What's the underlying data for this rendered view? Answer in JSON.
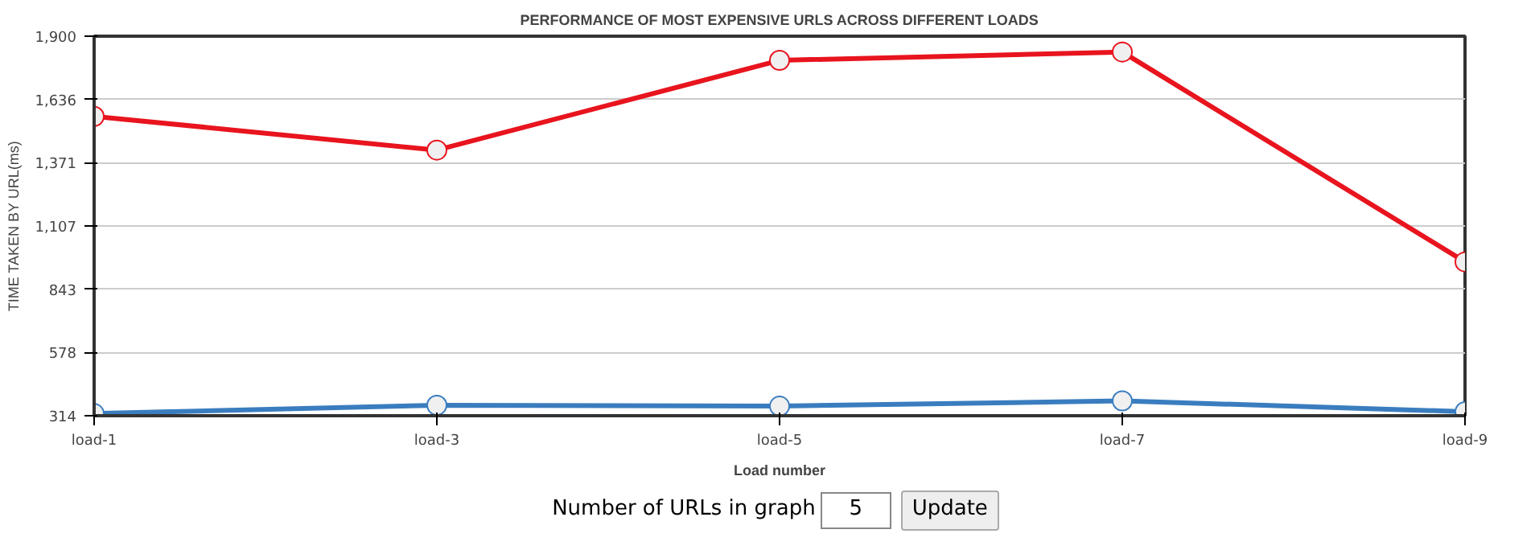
{
  "chart_data": {
    "type": "line",
    "title": "PERFORMANCE OF MOST EXPENSIVE URLS ACROSS DIFFERENT LOADS",
    "xlabel": "Load number",
    "ylabel": "TIME TAKEN BY URL(ms)",
    "categories": [
      "load-1",
      "load-3",
      "load-5",
      "load-7",
      "load-9"
    ],
    "series": [
      {
        "color": "#e8141e",
        "values": [
          1565,
          1424,
          1799,
          1834,
          957
        ]
      },
      {
        "color": "#3a7dbf",
        "values": [
          323,
          358,
          354,
          376,
          331
        ]
      }
    ],
    "ylim": [
      314,
      1900
    ],
    "yticks": [
      {
        "value": 314,
        "label": "314"
      },
      {
        "value": 578,
        "label": "578"
      },
      {
        "value": 843,
        "label": "843"
      },
      {
        "value": 1107,
        "label": "1,107"
      },
      {
        "value": 1371,
        "label": "1,371"
      },
      {
        "value": 1636,
        "label": "1,636"
      },
      {
        "value": 1900,
        "label": "1,900"
      }
    ],
    "grid": "y",
    "marker": "circle",
    "line_style": "solid",
    "annotations": [
      "Number of URLs in graph",
      "5",
      "Update"
    ]
  }
}
